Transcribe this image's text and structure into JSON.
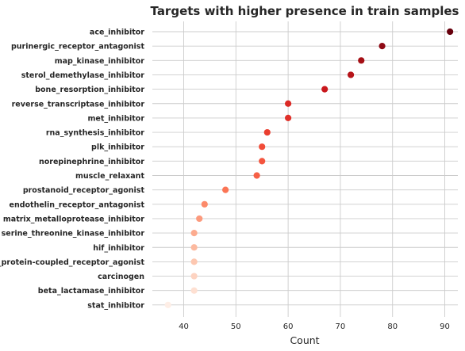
{
  "chart_data": {
    "type": "scatter",
    "title": "Targets with higher presence in train samples",
    "xlabel": "Count",
    "ylabel": "",
    "xlim": [
      34,
      92.5
    ],
    "xticks": [
      40,
      50,
      60,
      70,
      80,
      90
    ],
    "grid": true,
    "categories": [
      "ace_inhibitor",
      "purinergic_receptor_antagonist",
      "map_kinase_inhibitor",
      "sterol_demethylase_inhibitor",
      "bone_resorption_inhibitor",
      "reverse_transcriptase_inhibitor",
      "met_inhibitor",
      "rna_synthesis_inhibitor",
      "plk_inhibitor",
      "norepinephrine_inhibitor",
      "muscle_relaxant",
      "prostanoid_receptor_agonist",
      "endothelin_receptor_antagonist",
      "matrix_metalloprotease_inhibitor",
      "serine_threonine_kinase_inhibitor",
      "hif_inhibitor",
      "g_protein-coupled_receptor_agonist",
      "carcinogen",
      "beta_lactamase_inhibitor",
      "stat_inhibitor"
    ],
    "values": [
      91,
      78,
      74,
      72,
      67,
      60,
      60,
      56,
      55,
      55,
      54,
      48,
      44,
      43,
      42,
      42,
      42,
      42,
      42,
      37
    ],
    "colors": [
      "#67000d",
      "#8e0a15",
      "#a50f15",
      "#b61419",
      "#c9181d",
      "#db2a25",
      "#e0312a",
      "#ea3e2f",
      "#f14c38",
      "#f4553e",
      "#f66046",
      "#fb7555",
      "#fc8a6a",
      "#fc9a7d",
      "#fcab8f",
      "#fcb99f",
      "#fdc7b0",
      "#fdd3c1",
      "#fee0d2",
      "#feeee6"
    ]
  }
}
